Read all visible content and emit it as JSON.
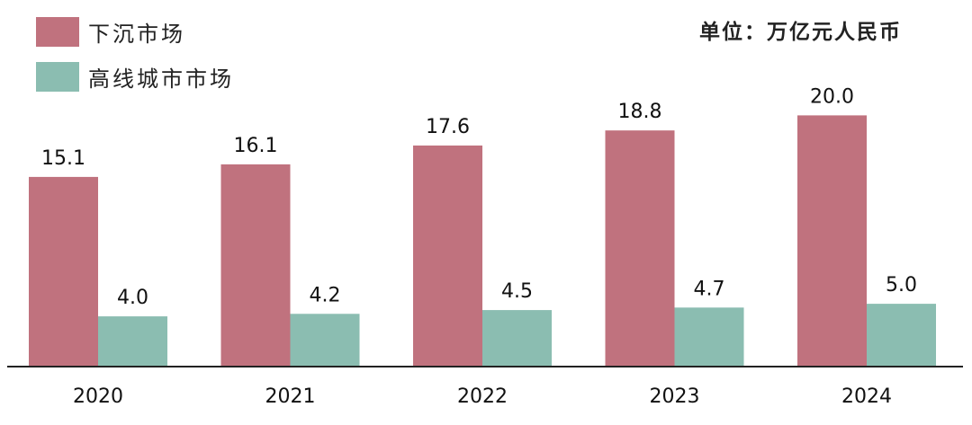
{
  "unit_label": "单位：万亿元人民币",
  "colors": {
    "series1": "#C0727E",
    "series2": "#8BBDB1",
    "axis": "#222222"
  },
  "chart_data": {
    "type": "bar",
    "categories": [
      "2020",
      "2021",
      "2022",
      "2023",
      "2024"
    ],
    "series": [
      {
        "name": "下沉市场",
        "values": [
          15.1,
          16.1,
          17.6,
          18.8,
          20.0
        ],
        "labels": [
          "15.1",
          "16.1",
          "17.6",
          "18.8",
          "20.0"
        ]
      },
      {
        "name": "高线城市市场",
        "values": [
          4.0,
          4.2,
          4.5,
          4.7,
          5.0
        ],
        "labels": [
          "4.0",
          "4.2",
          "4.5",
          "4.7",
          "5.0"
        ]
      }
    ],
    "legend": "top-left",
    "grid": false,
    "ylim": [
      0,
      22.5
    ]
  }
}
